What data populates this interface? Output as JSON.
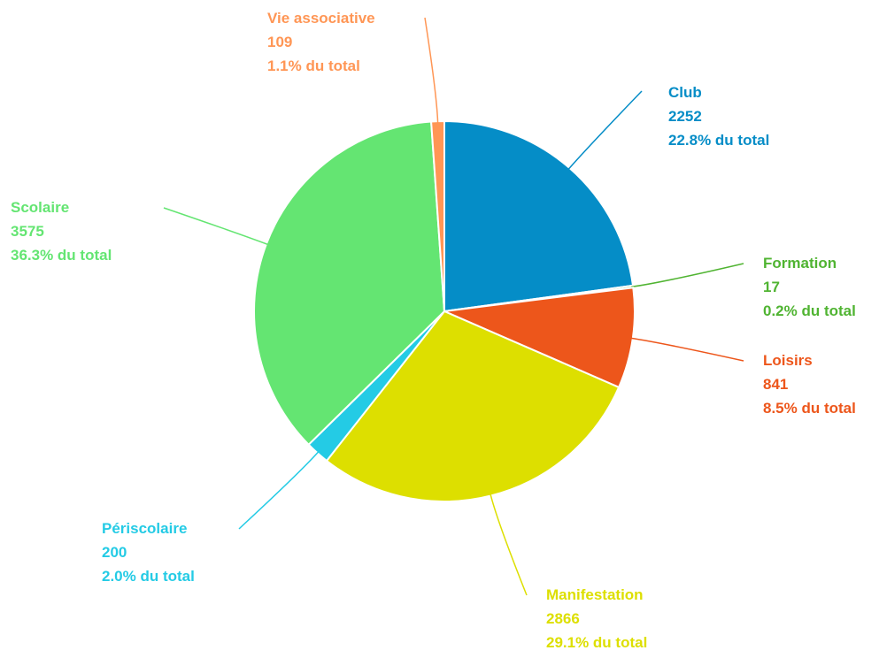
{
  "chart_data": {
    "type": "pie",
    "categories": [
      "Club",
      "Formation",
      "Loisirs",
      "Manifestation",
      "Périscolaire",
      "Scolaire",
      "Vie associative"
    ],
    "values": [
      2252,
      17,
      841,
      2866,
      200,
      3575,
      109
    ],
    "percent_labels": [
      "22.8% du total",
      "0.2% du total",
      "8.5% du total",
      "29.1% du total",
      "2.0% du total",
      "36.3% du total",
      "1.1% du total"
    ],
    "colors": [
      "#058dc7",
      "#50b432",
      "#ed561b",
      "#dddf00",
      "#24cbe5",
      "#64e572",
      "#ff9655"
    ]
  }
}
